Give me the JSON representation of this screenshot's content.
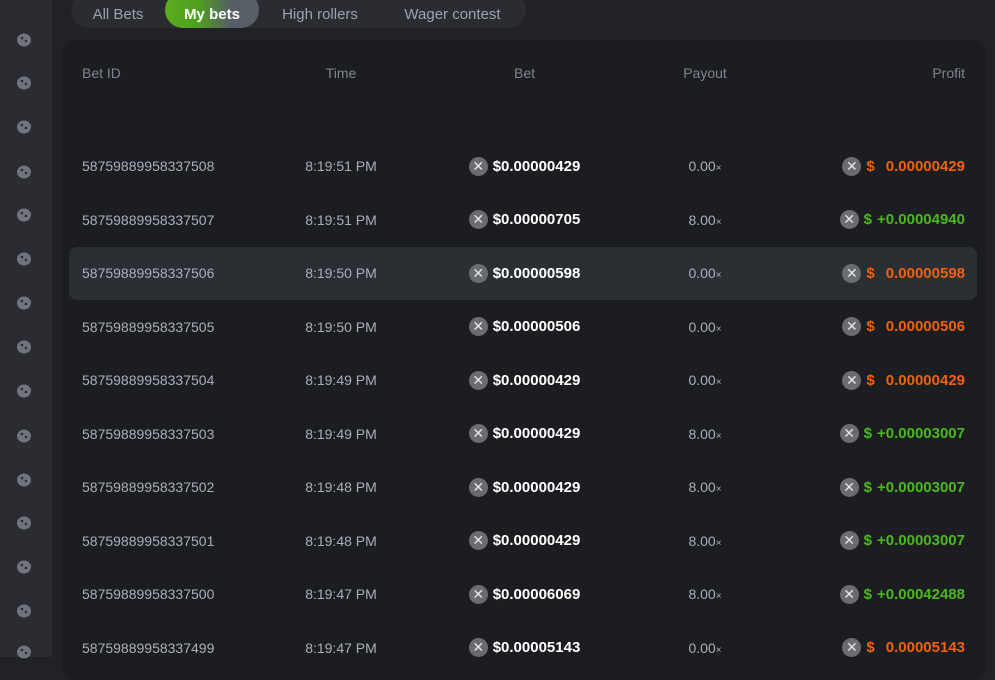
{
  "tabs": [
    {
      "label": "All Bets",
      "active": false
    },
    {
      "label": "My bets",
      "active": true
    },
    {
      "label": "High rollers",
      "active": false
    },
    {
      "label": "Wager contest",
      "active": false
    }
  ],
  "sidebar_icons": [
    "comet-icon",
    "dice-icon",
    "monster-icon",
    "bomb-icon",
    "roulette-icon",
    "wheel-icon",
    "eggs-icon",
    "coins-icon",
    "turtle-icon",
    "ball-icon",
    "slot-machine-icon",
    "ring-icon",
    "sword-icon",
    "wheel-cart-icon",
    "truck-icon"
  ],
  "table": {
    "headers": {
      "bet_id": "Bet ID",
      "time": "Time",
      "bet": "Bet",
      "payout": "Payout",
      "profit": "Profit"
    },
    "currency_icon": "xrp-icon",
    "rows": [
      {
        "id": "58759889958337508",
        "time": "8:19:51 PM",
        "bet": "$0.00000429",
        "payout": "0.00",
        "mult": "×",
        "profit_cur": "$",
        "profit": "0.00000429",
        "win": false
      },
      {
        "id": "58759889958337507",
        "time": "8:19:51 PM",
        "bet": "$0.00000705",
        "payout": "8.00",
        "mult": "×",
        "profit_cur": "$",
        "profit": "+0.00004940",
        "win": true
      },
      {
        "id": "58759889958337506",
        "time": "8:19:50 PM",
        "bet": "$0.00000598",
        "payout": "0.00",
        "mult": "×",
        "profit_cur": "$",
        "profit": "0.00000598",
        "win": false
      },
      {
        "id": "58759889958337505",
        "time": "8:19:50 PM",
        "bet": "$0.00000506",
        "payout": "0.00",
        "mult": "×",
        "profit_cur": "$",
        "profit": "0.00000506",
        "win": false
      },
      {
        "id": "58759889958337504",
        "time": "8:19:49 PM",
        "bet": "$0.00000429",
        "payout": "0.00",
        "mult": "×",
        "profit_cur": "$",
        "profit": "0.00000429",
        "win": false
      },
      {
        "id": "58759889958337503",
        "time": "8:19:49 PM",
        "bet": "$0.00000429",
        "payout": "8.00",
        "mult": "×",
        "profit_cur": "$",
        "profit": "+0.00003007",
        "win": true
      },
      {
        "id": "58759889958337502",
        "time": "8:19:48 PM",
        "bet": "$0.00000429",
        "payout": "8.00",
        "mult": "×",
        "profit_cur": "$",
        "profit": "+0.00003007",
        "win": true
      },
      {
        "id": "58759889958337501",
        "time": "8:19:48 PM",
        "bet": "$0.00000429",
        "payout": "8.00",
        "mult": "×",
        "profit_cur": "$",
        "profit": "+0.00003007",
        "win": true
      },
      {
        "id": "58759889958337500",
        "time": "8:19:47 PM",
        "bet": "$0.00006069",
        "payout": "8.00",
        "mult": "×",
        "profit_cur": "$",
        "profit": "+0.00042488",
        "win": true
      },
      {
        "id": "58759889958337499",
        "time": "8:19:47 PM",
        "bet": "$0.00005143",
        "payout": "0.00",
        "mult": "×",
        "profit_cur": "$",
        "profit": "0.00005143",
        "win": false
      }
    ]
  },
  "colors": {
    "win": "#4cb81f",
    "loss": "#f0620f",
    "accent": "#5aac1e"
  }
}
